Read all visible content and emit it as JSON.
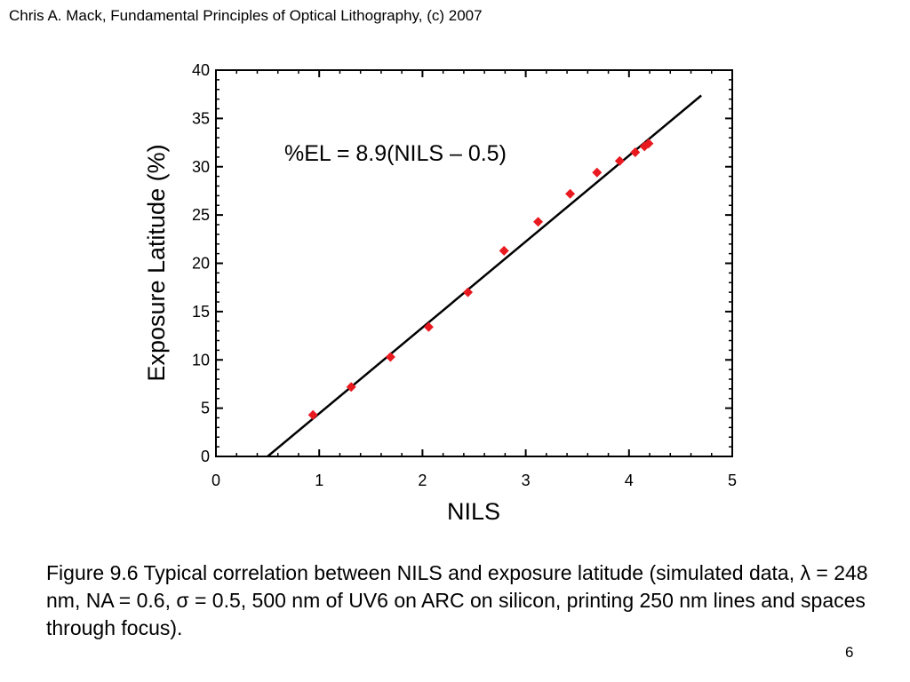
{
  "header": {
    "text": "Chris A. Mack, Fundamental Principles of Optical Lithography, (c) 2007"
  },
  "chart_data": {
    "type": "scatter",
    "xlabel": "NILS",
    "ylabel": "Exposure Latitude (%)",
    "xlim": [
      0,
      5
    ],
    "ylim": [
      0,
      40
    ],
    "x_ticks": [
      "0",
      "1",
      "2",
      "3",
      "4",
      "5"
    ],
    "y_ticks": [
      "0",
      "5",
      "10",
      "15",
      "20",
      "25",
      "30",
      "35",
      "40"
    ],
    "grid": false,
    "annotation": "%EL = 8.9(NILS – 0.5)",
    "marker_color": "#e8191f",
    "fit_line": {
      "slope": 8.9,
      "x_intercept": 0.5,
      "x_range": [
        0.5,
        4.7
      ]
    },
    "series": [
      {
        "x": [
          0.94,
          1.31,
          1.69,
          2.06,
          2.44,
          2.79,
          3.12,
          3.43,
          3.69,
          3.91,
          4.06,
          4.15,
          4.19
        ],
        "y": [
          4.3,
          7.2,
          10.3,
          13.4,
          17.0,
          21.3,
          24.3,
          27.2,
          29.4,
          30.6,
          31.5,
          32.1,
          32.4
        ]
      }
    ]
  },
  "caption": {
    "text": "Figure 9.6  Typical correlation between NILS and exposure latitude (simulated data, λ = 248 nm, NA = 0.6, σ = 0.5, 500 nm of UV6 on ARC on silicon, printing 250 nm lines and spaces through focus)."
  },
  "page_number": "6"
}
